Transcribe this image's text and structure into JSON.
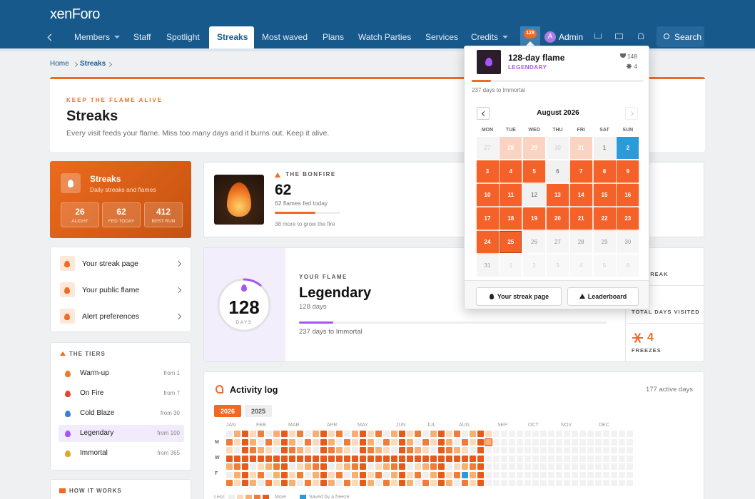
{
  "header": {
    "logo": "xenForo",
    "nav": [
      "Members",
      "Staff",
      "Spotlight",
      "Streaks",
      "Most waved",
      "Plans",
      "Watch Parties",
      "Services",
      "Credits"
    ],
    "active": "Streaks",
    "streak_badge": 128,
    "user": "Admin",
    "user_initial": "A",
    "search": "Search"
  },
  "breadcrumb": [
    "Home",
    "Streaks"
  ],
  "hero": {
    "kicker": "KEEP THE FLAME ALIVE",
    "title": "Streaks",
    "text": "Every visit feeds your flame. Miss too many days and it burns out. Keep it alive."
  },
  "summary": {
    "title": "Streaks",
    "subtitle": "Daily streaks and flames",
    "stats": [
      {
        "value": 26,
        "label": "ALIGHT"
      },
      {
        "value": 62,
        "label": "FED TODAY"
      },
      {
        "value": 412,
        "label": "BEST RUN"
      }
    ]
  },
  "links": [
    "Your streak page",
    "Your public flame",
    "Alert preferences"
  ],
  "tiers": {
    "title": "THE TIERS",
    "items": [
      {
        "name": "Warm-up",
        "from": "from 1",
        "color": "#f07a2a"
      },
      {
        "name": "On Fire",
        "from": "from 7",
        "color": "#e8452c"
      },
      {
        "name": "Cold Blaze",
        "from": "from 30",
        "color": "#3b7fd9"
      },
      {
        "name": "Legendary",
        "from": "from 100",
        "color": "#a855f7"
      },
      {
        "name": "Immortal",
        "from": "from 365",
        "color": "#e2a526"
      }
    ],
    "highlight": "Legendary"
  },
  "how": {
    "title": "HOW IT WORKS"
  },
  "bonfire": {
    "kicker": "THE BONFIRE",
    "value": 62,
    "caption": "62 flames fed today",
    "note": "38 more to grow the fire",
    "progress": 62
  },
  "flame": {
    "days": 128,
    "days_label": "DAYS",
    "kicker": "YOUR FLAME",
    "tier": "Legendary",
    "sub": "128 days",
    "note": "237 days to Immortal",
    "progress": 11
  },
  "stats": [
    {
      "label": "ST STREAK"
    },
    {
      "label": "TOTAL DAYS VISITED"
    },
    {
      "value": 4,
      "label": "FREEZES"
    }
  ],
  "activity": {
    "title": "Activity log",
    "total": "177 active days",
    "years": [
      "2026",
      "2025"
    ],
    "months": [
      "JAN",
      "FEB",
      "MAR",
      "APR",
      "MAY",
      "JUN",
      "JUL",
      "AUG",
      "SEP",
      "OCT",
      "NOV",
      "DEC"
    ],
    "days": [
      "M",
      "W",
      "F"
    ],
    "legend": {
      "less": "Less",
      "more": "More",
      "freeze": "Saved by a freeze"
    }
  },
  "popup": {
    "title": "128-day flame",
    "tier": "LEGENDARY",
    "trophies": 148,
    "freezes": 4,
    "progress": 11,
    "note": "237 days to Immortal",
    "month": "August 2026",
    "weekdays": [
      "MON",
      "TUE",
      "WED",
      "THU",
      "FRI",
      "SAT",
      "SUN"
    ],
    "weeks": [
      [
        {
          "day": 27,
          "state": "outside"
        },
        {
          "day": 28,
          "state": "missed"
        },
        {
          "day": 29,
          "state": "missed"
        },
        {
          "day": 30,
          "state": "outside"
        },
        {
          "day": 31,
          "state": "missed"
        },
        {
          "day": 1,
          "state": "empty"
        },
        {
          "day": 2,
          "state": "frozen"
        }
      ],
      [
        {
          "day": 3,
          "state": "lit"
        },
        {
          "day": 4,
          "state": "lit"
        },
        {
          "day": 5,
          "state": "lit"
        },
        {
          "day": 6,
          "state": "empty"
        },
        {
          "day": 7,
          "state": "lit"
        },
        {
          "day": 8,
          "state": "lit"
        },
        {
          "day": 9,
          "state": "lit"
        }
      ],
      [
        {
          "day": 10,
          "state": "lit"
        },
        {
          "day": 11,
          "state": "lit"
        },
        {
          "day": 12,
          "state": "empty"
        },
        {
          "day": 13,
          "state": "lit"
        },
        {
          "day": 14,
          "state": "lit"
        },
        {
          "day": 15,
          "state": "lit"
        },
        {
          "day": 16,
          "state": "lit"
        }
      ],
      [
        {
          "day": 17,
          "state": "lit"
        },
        {
          "day": 18,
          "state": "lit"
        },
        {
          "day": 19,
          "state": "lit"
        },
        {
          "day": 20,
          "state": "lit"
        },
        {
          "day": 21,
          "state": "lit"
        },
        {
          "day": 22,
          "state": "lit"
        },
        {
          "day": 23,
          "state": "lit"
        }
      ],
      [
        {
          "day": 24,
          "state": "lit"
        },
        {
          "day": 25,
          "state": "today"
        },
        {
          "day": 26,
          "state": "future"
        },
        {
          "day": 27,
          "state": "future"
        },
        {
          "day": 28,
          "state": "future"
        },
        {
          "day": 29,
          "state": "future"
        },
        {
          "day": 30,
          "state": "future"
        }
      ],
      [
        {
          "day": 31,
          "state": "future"
        },
        {
          "day": 1,
          "state": "next"
        },
        {
          "day": 2,
          "state": "next"
        },
        {
          "day": 3,
          "state": "next"
        },
        {
          "day": 4,
          "state": "next"
        },
        {
          "day": 5,
          "state": "next"
        },
        {
          "day": 6,
          "state": "next"
        }
      ]
    ],
    "buttons": [
      "Your streak page",
      "Leaderboard"
    ]
  }
}
